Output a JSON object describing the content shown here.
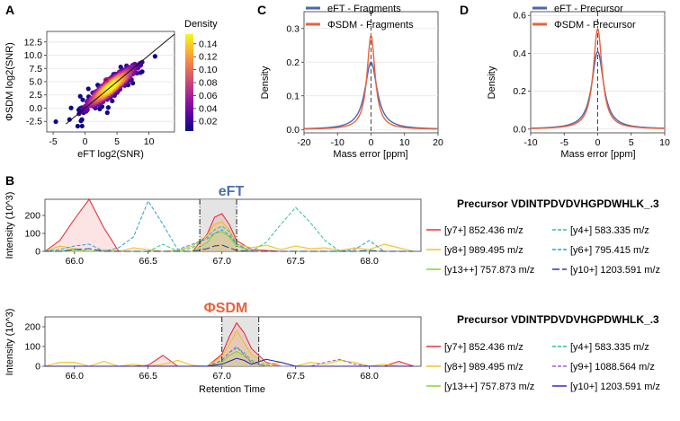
{
  "colors": {
    "eft": "#4a66b0",
    "phisdm": "#e8623c",
    "heading_eft": "#4a6fb5",
    "heading_phisdm": "#e8623c",
    "shade": "#d9d9d9",
    "colorbar": [
      "#0d0887",
      "#5c01a6",
      "#9c179e",
      "#cc4778",
      "#ed7953",
      "#fdb42f",
      "#f0f921"
    ]
  },
  "panel_letters": {
    "a": "A",
    "b": "B",
    "c": "C",
    "d": "D"
  },
  "chart_data": [
    {
      "id": "A",
      "type": "scatter",
      "xlabel": "eFT log2(SNR)",
      "ylabel": "ΦSDM log2(SNR)",
      "xlim": [
        -6,
        14
      ],
      "ylim": [
        -4.5,
        14.5
      ],
      "xticks": [
        "-5",
        "0",
        "5",
        "10"
      ],
      "yticks": [
        "-2.5",
        "0.0",
        "2.5",
        "5.0",
        "7.5",
        "10.0",
        "12.5"
      ],
      "ytick_values": [
        -2.5,
        0,
        2.5,
        5,
        7.5,
        10,
        12.5
      ],
      "xtick_values": [
        -5,
        0,
        5,
        10
      ],
      "diagonal": [
        [
          -3,
          -3
        ],
        [
          14,
          14
        ]
      ],
      "highlight_point": [
        3.3,
        5.3
      ],
      "colorbar": {
        "label": "Density",
        "ticks": [
          "0.14",
          "0.12",
          "0.10",
          "0.08",
          "0.06",
          "0.04",
          "0.02"
        ],
        "tick_values": [
          0.14,
          0.12,
          0.1,
          0.08,
          0.06,
          0.04,
          0.02
        ],
        "range": [
          0.005,
          0.155
        ]
      }
    },
    {
      "id": "C",
      "type": "line",
      "xlabel": "Mass error [ppm]",
      "ylabel": "Density",
      "xlim": [
        -20,
        20
      ],
      "ylim": [
        -0.01,
        0.35
      ],
      "xticks": [
        "-20",
        "-10",
        "0",
        "10",
        "20"
      ],
      "xtick_values": [
        -20,
        -10,
        0,
        10,
        20
      ],
      "yticks": [
        "0.0",
        "0.1",
        "0.2",
        "0.3"
      ],
      "ytick_values": [
        0,
        0.1,
        0.2,
        0.3
      ],
      "series": [
        {
          "name": "eFT - Fragments",
          "peak": 0.2,
          "width": 2.2
        },
        {
          "name": "ΦSDM - Fragments",
          "peak": 0.28,
          "width": 1.45
        }
      ]
    },
    {
      "id": "D",
      "type": "line",
      "xlabel": "Mass error [ppm]",
      "ylabel": "Density",
      "xlim": [
        -10,
        10
      ],
      "ylim": [
        -0.02,
        0.62
      ],
      "xticks": [
        "-10",
        "-5",
        "0",
        "5",
        "10"
      ],
      "xtick_values": [
        -10,
        -5,
        0,
        5,
        10
      ],
      "yticks": [
        "0.0",
        "0.2",
        "0.4",
        "0.6"
      ],
      "ytick_values": [
        0,
        0.2,
        0.4,
        0.6
      ],
      "series": [
        {
          "name": "eFT - Precursor",
          "peak": 0.41,
          "width": 1.05
        },
        {
          "name": "ΦSDM - Precursor",
          "peak": 0.53,
          "width": 0.8
        }
      ]
    },
    {
      "id": "B-eFT",
      "type": "line",
      "heading": "eFT",
      "precursor": "Precursor VDINTPDVDVHGPDWHLK_.3",
      "ylabel": "Intensity (10^3)",
      "xlim": [
        65.8,
        68.35
      ],
      "ylim": [
        0,
        290
      ],
      "xticks": [
        "66.0",
        "66.5",
        "67.0",
        "67.5",
        "68.0"
      ],
      "xtick_values": [
        66.0,
        66.5,
        67.0,
        67.5,
        68.0
      ],
      "yticks": [
        "0",
        "100",
        "200"
      ],
      "ytick_values": [
        0,
        100,
        200
      ],
      "shade": [
        66.85,
        67.1
      ],
      "vlines": [
        66.85,
        67.1
      ],
      "x": [
        65.8,
        65.9,
        66.0,
        66.1,
        66.2,
        66.3,
        66.4,
        66.5,
        66.6,
        66.7,
        66.8,
        66.9,
        66.95,
        67.0,
        67.05,
        67.1,
        67.2,
        67.3,
        67.4,
        67.5,
        67.6,
        67.7,
        67.8,
        67.9,
        68.0,
        68.1,
        68.2,
        68.3
      ],
      "series": [
        {
          "name": "[y7+] 852.436 m/z",
          "color": "#e8232b",
          "dash": "",
          "values": [
            0,
            60,
            180,
            310,
            130,
            0,
            0,
            0,
            0,
            0,
            0,
            95,
            190,
            210,
            150,
            60,
            10,
            5,
            0,
            0,
            0,
            0,
            0,
            0,
            0,
            0,
            0,
            0
          ]
        },
        {
          "name": "[y8+] 989.495 m/z",
          "color": "#f0be1a",
          "dash": "",
          "values": [
            0,
            30,
            15,
            0,
            10,
            0,
            20,
            10,
            0,
            5,
            30,
            90,
            150,
            165,
            120,
            40,
            20,
            35,
            10,
            30,
            15,
            20,
            5,
            20,
            10,
            40,
            20,
            0
          ]
        },
        {
          "name": "[y13++] 757.873 m/z",
          "color": "#7ed320",
          "dash": "",
          "values": [
            0,
            0,
            0,
            0,
            0,
            0,
            0,
            0,
            0,
            0,
            0,
            50,
            100,
            110,
            80,
            30,
            0,
            0,
            0,
            0,
            0,
            0,
            0,
            0,
            0,
            0,
            0,
            0
          ]
        },
        {
          "name": "[y4+] 583.335 m/z",
          "color": "#2bc48f",
          "dash": "4 2",
          "values": [
            0,
            0,
            10,
            0,
            0,
            0,
            0,
            0,
            40,
            0,
            20,
            80,
            120,
            140,
            110,
            40,
            0,
            50,
            150,
            245,
            160,
            60,
            0,
            0,
            0,
            0,
            0,
            0
          ]
        },
        {
          "name": "[y6+] 795.415 m/z",
          "color": "#2a9fd9",
          "dash": "4 2",
          "values": [
            0,
            10,
            30,
            40,
            0,
            20,
            80,
            280,
            150,
            10,
            40,
            70,
            100,
            120,
            90,
            40,
            0,
            0,
            0,
            0,
            0,
            0,
            0,
            10,
            60,
            0,
            0,
            0
          ]
        },
        {
          "name": "[y10+] 1203.591 m/z",
          "color": "#2b3a9e",
          "dash": "8 3",
          "values": [
            0,
            0,
            10,
            15,
            0,
            0,
            0,
            0,
            0,
            0,
            0,
            15,
            30,
            35,
            20,
            5,
            0,
            0,
            0,
            0,
            0,
            0,
            0,
            0,
            5,
            0,
            0,
            0
          ]
        }
      ]
    },
    {
      "id": "B-PhiSDM",
      "type": "line",
      "heading": "ΦSDM",
      "precursor": "Precursor VDINTPDVDVHGPDWHLK_.3",
      "ylabel": "Intensity (10^3)",
      "xlabel": "Retention Time",
      "xlim": [
        65.8,
        68.35
      ],
      "ylim": [
        0,
        250
      ],
      "xticks": [
        "66.0",
        "66.5",
        "67.0",
        "67.5",
        "68.0"
      ],
      "xtick_values": [
        66.0,
        66.5,
        67.0,
        67.5,
        68.0
      ],
      "yticks": [
        "0",
        "100",
        "200"
      ],
      "ytick_values": [
        0,
        100,
        200
      ],
      "shade": [
        67.0,
        67.25
      ],
      "vlines": [
        67.0,
        67.25
      ],
      "x": [
        65.8,
        65.9,
        66.0,
        66.1,
        66.2,
        66.3,
        66.4,
        66.5,
        66.6,
        66.7,
        66.8,
        66.9,
        67.0,
        67.05,
        67.1,
        67.15,
        67.2,
        67.3,
        67.4,
        67.5,
        67.6,
        67.7,
        67.8,
        67.9,
        68.0,
        68.1,
        68.2,
        68.3
      ],
      "series": [
        {
          "name": "[y7+] 852.436 m/z",
          "color": "#e8232b",
          "dash": "",
          "values": [
            0,
            0,
            0,
            0,
            0,
            0,
            0,
            5,
            55,
            0,
            0,
            0,
            60,
            150,
            220,
            170,
            90,
            20,
            0,
            0,
            0,
            0,
            0,
            0,
            0,
            0,
            25,
            0
          ]
        },
        {
          "name": "[y8+] 989.495 m/z",
          "color": "#f0be1a",
          "dash": "",
          "values": [
            0,
            20,
            20,
            0,
            25,
            0,
            10,
            0,
            10,
            30,
            5,
            0,
            50,
            110,
            180,
            120,
            60,
            10,
            20,
            0,
            20,
            10,
            30,
            20,
            0,
            10,
            0,
            0
          ]
        },
        {
          "name": "[y13++] 757.873 m/z",
          "color": "#7ed320",
          "dash": "",
          "values": [
            0,
            0,
            0,
            0,
            0,
            0,
            0,
            0,
            0,
            0,
            0,
            0,
            20,
            55,
            75,
            55,
            20,
            0,
            0,
            0,
            0,
            0,
            0,
            0,
            0,
            0,
            0,
            0
          ]
        },
        {
          "name": "[y4+] 583.335 m/z",
          "color": "#2bc48f",
          "dash": "4 2",
          "values": [
            0,
            0,
            0,
            0,
            0,
            0,
            0,
            0,
            0,
            0,
            0,
            0,
            30,
            70,
            90,
            70,
            30,
            5,
            0,
            0,
            0,
            0,
            0,
            0,
            0,
            0,
            0,
            0
          ]
        },
        {
          "name": "[y9+] 1088.564 m/z",
          "color": "#a05ad8",
          "dash": "4 2",
          "values": [
            0,
            0,
            0,
            0,
            0,
            0,
            0,
            0,
            0,
            0,
            0,
            0,
            30,
            70,
            100,
            60,
            20,
            0,
            0,
            0,
            0,
            20,
            35,
            10,
            0,
            0,
            0,
            0
          ]
        },
        {
          "name": "[y10+] 1203.591 m/z",
          "color": "#2b1fb0",
          "dash": "",
          "values": [
            0,
            0,
            0,
            0,
            0,
            0,
            0,
            0,
            0,
            0,
            0,
            0,
            10,
            25,
            40,
            30,
            10,
            35,
            20,
            0,
            0,
            0,
            0,
            0,
            0,
            0,
            0,
            0
          ]
        }
      ]
    }
  ]
}
